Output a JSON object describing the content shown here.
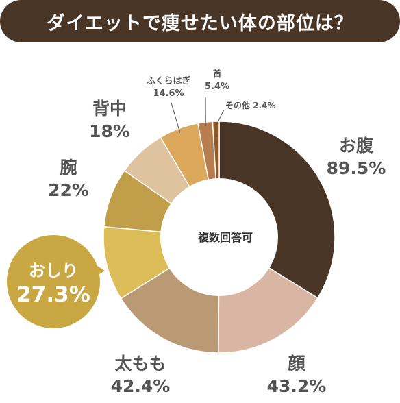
{
  "title": "ダイエットで痩せたい体の部位は？",
  "center_label": "複数回答可",
  "chart_data": {
    "type": "pie",
    "title": "ダイエットで痩せたい体の部位は？",
    "note": "複数回答可",
    "categories": [
      "お腹",
      "顔",
      "太もも",
      "おしり",
      "腕",
      "背中",
      "ふくらはぎ",
      "首",
      "その他"
    ],
    "values": [
      89.5,
      43.2,
      42.4,
      27.3,
      22,
      18,
      14.6,
      5.4,
      2.4
    ],
    "value_labels": [
      "89.5%",
      "43.2%",
      "42.4%",
      "27.3%",
      "22%",
      "18%",
      "14.6%",
      "5.4%",
      "2.4%"
    ],
    "colors": [
      "#4a3626",
      "#d9b6a3",
      "#b99a75",
      "#dcbd58",
      "#c19e4a",
      "#dfc29e",
      "#dba85c",
      "#b87d4e",
      "#8c5a2b"
    ],
    "highlight": "おしり"
  }
}
